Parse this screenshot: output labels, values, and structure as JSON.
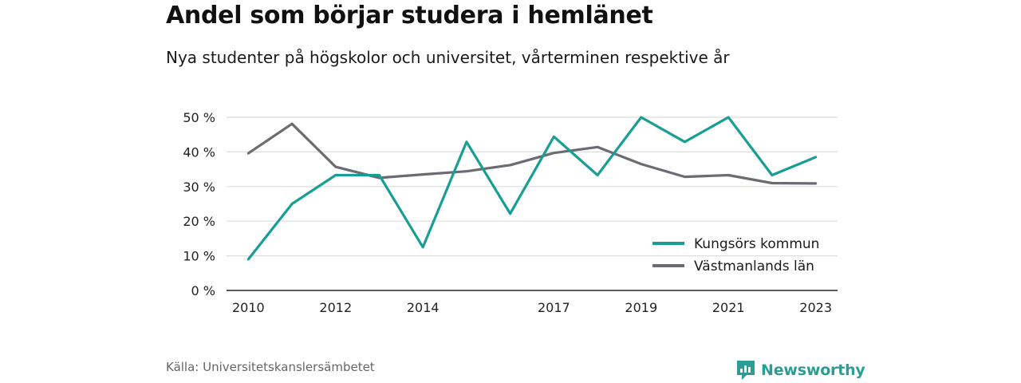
{
  "header": {
    "title": "Andel som börjar studera i hemlänet",
    "subtitle": "Nya studenter på högskolor och universitet, vårterminen respektive år"
  },
  "footer": {
    "source": "Källa: Universitetskanslersämbetet",
    "brand": "Newsworthy"
  },
  "colors": {
    "kungsor": "#199e94",
    "vastmanland": "#6b6b73",
    "grid": "#dddddd",
    "brand": "#2a9d95"
  },
  "chart_data": {
    "type": "line",
    "x_tick_labels": [
      "2010",
      "2012",
      "2014",
      "2017",
      "2019",
      "2021",
      "2023"
    ],
    "y_tick_labels": [
      "0 %",
      "10 %",
      "20 %",
      "30 %",
      "40 %",
      "50 %"
    ],
    "ylim": [
      0,
      50
    ],
    "xlim": [
      2009.5,
      2023.5
    ],
    "grid": true,
    "legend_position": "bottom-right",
    "series": [
      {
        "name": "Kungsörs kommun",
        "x": [
          2010,
          2011,
          2012,
          2013,
          2014,
          2015,
          2016,
          2017,
          2018,
          2019,
          2020,
          2021,
          2022,
          2023
        ],
        "values": [
          9,
          25,
          33.3,
          33.3,
          12.5,
          42.9,
          22.2,
          44.4,
          33.3,
          50,
          42.9,
          50,
          33.3,
          38.5
        ]
      },
      {
        "name": "Västmanlands län",
        "x": [
          2010,
          2011,
          2012,
          2013,
          2014,
          2015,
          2016,
          2017,
          2018,
          2019,
          2020,
          2021,
          2022,
          2023
        ],
        "values": [
          39.6,
          48.1,
          35.7,
          32.5,
          33.5,
          34.4,
          36.2,
          39.7,
          41.4,
          36.5,
          32.8,
          33.3,
          31,
          30.9
        ]
      }
    ]
  }
}
